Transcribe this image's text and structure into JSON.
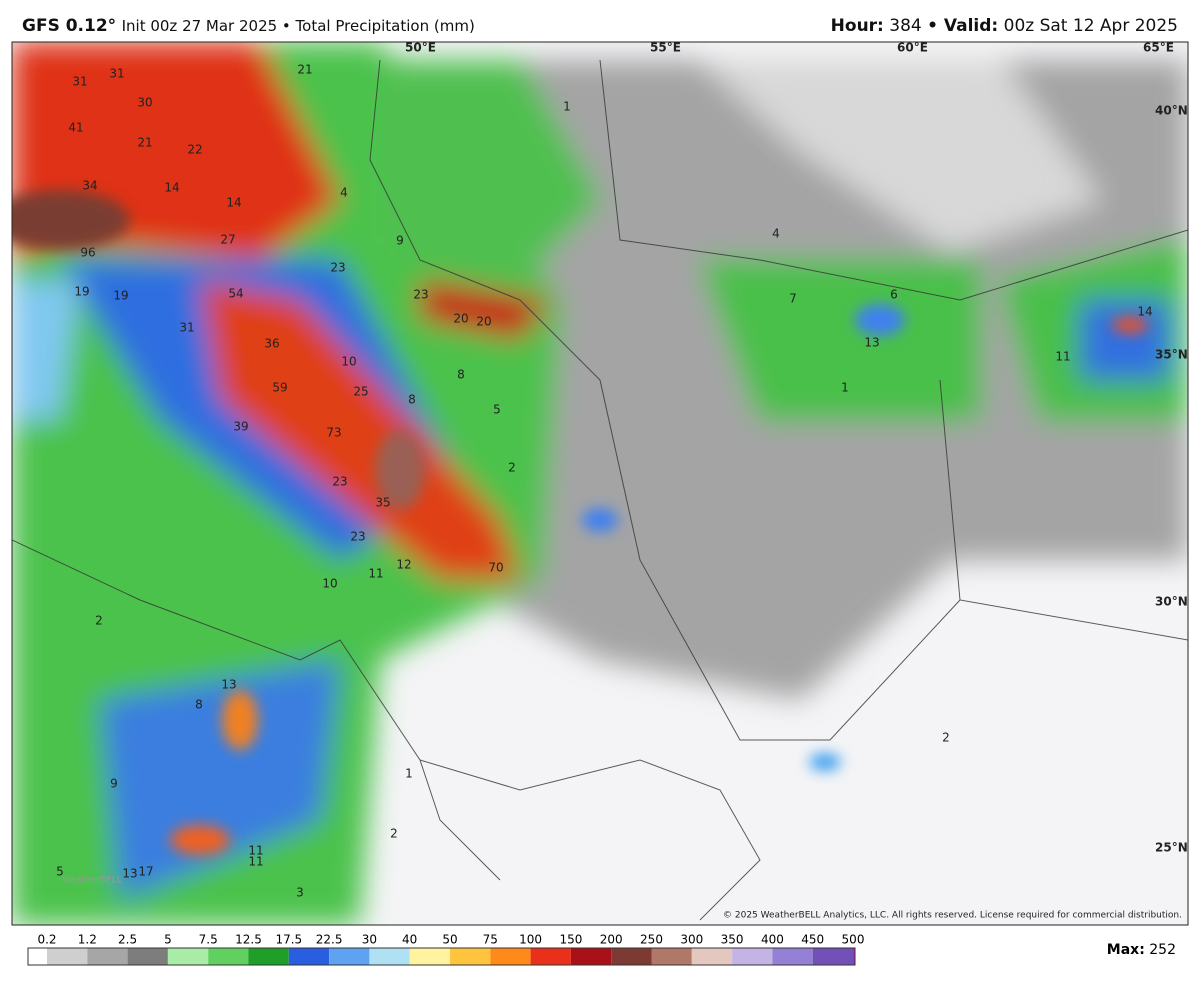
{
  "header": {
    "model": "GFS 0.12°",
    "title": "Init 00z 27 Mar 2025 • Total Precipitation (mm)",
    "hour_label": "Hour:",
    "hour": "384",
    "valid_label": "• Valid:",
    "valid": "00z Sat 12 Apr 2025"
  },
  "map": {
    "lon_labels": [
      "50°E",
      "55°E",
      "60°E",
      "65°E"
    ],
    "lat_labels": [
      "40°N",
      "35°N",
      "30°N",
      "25°N"
    ],
    "value_labels": [
      "31",
      "31",
      "30",
      "21",
      "41",
      "21",
      "22",
      "14",
      "14",
      "4",
      "34",
      "27",
      "96",
      "9",
      "23",
      "23",
      "19",
      "19",
      "54",
      "20",
      "20",
      "31",
      "36",
      "10",
      "8",
      "59",
      "25",
      "8",
      "5",
      "39",
      "73",
      "2",
      "23",
      "35",
      "23",
      "12",
      "11",
      "10",
      "70",
      "2",
      "13",
      "8",
      "9",
      "1",
      "2",
      "11",
      "11",
      "13",
      "17",
      "3",
      "5",
      "4",
      "7",
      "6",
      "13",
      "1",
      "14",
      "11",
      "1",
      "2"
    ],
    "copyright": "© 2025 WeatherBELL Analytics, LLC. All rights reserved. License required for commercial distribution.",
    "watermark": "WeatherBELL"
  },
  "colorbar": {
    "ticks": [
      "0.2",
      "1.2",
      "2.5",
      "5",
      "7.5",
      "12.5",
      "17.5",
      "22.5",
      "30",
      "40",
      "50",
      "75",
      "100",
      "150",
      "200",
      "250",
      "300",
      "350",
      "400",
      "450",
      "500"
    ],
    "colors": [
      "#ffffff",
      "#cfcfcf",
      "#a6a6a6",
      "#7d7d7d",
      "#a8ecA8",
      "#60d060",
      "#1f9f2a",
      "#2a5ee0",
      "#5fa2f2",
      "#b0e0f4",
      "#fff2a0",
      "#ffc43e",
      "#ff8a1a",
      "#e8301a",
      "#a8101a",
      "#7c3a32",
      "#b07868",
      "#e4c8c0",
      "#c4b4e4",
      "#9480d4",
      "#7250b8",
      "#c020c0"
    ],
    "max_label": "Max:",
    "max": "252"
  }
}
